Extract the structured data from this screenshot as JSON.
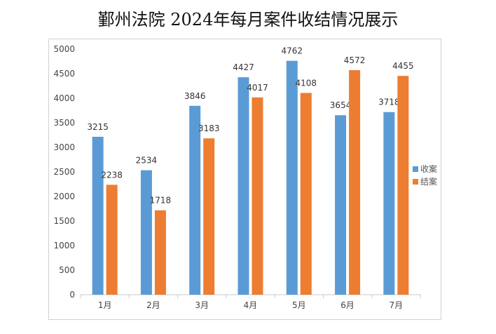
{
  "chart_data": {
    "type": "bar",
    "title": "鄞州法院 2024年每月案件收结情况展示",
    "categories": [
      "1月",
      "2月",
      "3月",
      "4月",
      "5月",
      "6月",
      "7月"
    ],
    "series": [
      {
        "name": "收案",
        "values": [
          3215,
          2534,
          3846,
          4427,
          4762,
          3654,
          3718
        ],
        "color": "#5b9bd5"
      },
      {
        "name": "结案",
        "values": [
          2238,
          1718,
          3183,
          4017,
          4108,
          4572,
          4455
        ],
        "color": "#ed7d31"
      }
    ],
    "ylim": [
      0,
      5000
    ],
    "yticks": [
      0,
      500,
      1000,
      1500,
      2000,
      2500,
      3000,
      3500,
      4000,
      4500,
      5000
    ],
    "legend": "right",
    "grid": false
  }
}
